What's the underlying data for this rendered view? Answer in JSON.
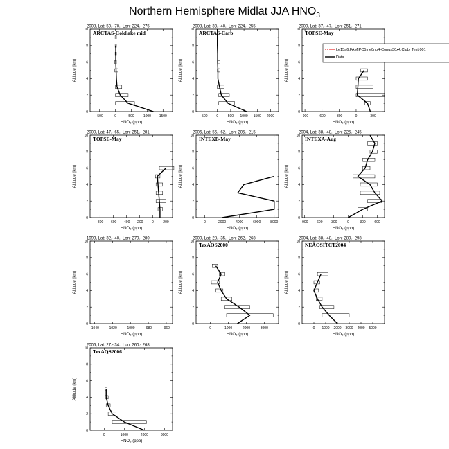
{
  "figure": {
    "title_main": "Northern Hemisphere Midlat JJA HNO",
    "title_sub": "3",
    "xlabel": "HNO₃ (ppb)",
    "ylabel": "Altitude (km)"
  },
  "chart_data": [
    {
      "type": "line",
      "name": "ARCTAS-Coldlake mid",
      "info": "2008, Lat: 50.- 70., Lon: 224.- 275.",
      "xlim": [
        -800,
        1800
      ],
      "xticks": [
        -500,
        0,
        500,
        1000,
        1500
      ],
      "ylim": [
        0,
        10
      ],
      "yticks": [
        0,
        2,
        4,
        6,
        8,
        10
      ],
      "model": [],
      "data": {
        "x": [
          1200,
          400,
          150,
          50,
          30,
          20,
          10,
          10,
          10
        ],
        "y": [
          0,
          1,
          2,
          3,
          4,
          5,
          6,
          7,
          8
        ]
      },
      "bars": [
        {
          "y": 1,
          "x0": 0,
          "x1": 600
        },
        {
          "y": 2,
          "x0": 0,
          "x1": 400
        },
        {
          "y": 3,
          "x0": 0,
          "x1": 200
        },
        {
          "y": 5,
          "x0": -20,
          "x1": 80
        },
        {
          "y": 6,
          "x0": -20,
          "x1": 30
        },
        {
          "y": 7,
          "x0": -10,
          "x1": 30
        },
        {
          "y": 8,
          "x0": -10,
          "x1": 30
        },
        {
          "y": 9,
          "x0": -10,
          "x1": 30
        }
      ]
    },
    {
      "type": "line",
      "name": "ARCTAS-Carb",
      "info": "2008, Lat: 33.- 40., Lon: 224.- 255.",
      "xlim": [
        -800,
        2300
      ],
      "xticks": [
        -500,
        0,
        500,
        1000,
        1500,
        2000
      ],
      "ylim": [
        0,
        10
      ],
      "yticks": [
        0,
        2,
        4,
        6,
        8,
        10
      ],
      "model": [],
      "data": {
        "x": [
          1100,
          400,
          150,
          80,
          20,
          20,
          10,
          10,
          0,
          0,
          0
        ],
        "y": [
          0,
          1,
          2,
          3,
          4,
          5,
          6,
          7,
          8,
          9,
          10
        ]
      },
      "bars": [
        {
          "y": 1,
          "x0": 50,
          "x1": 650
        },
        {
          "y": 2,
          "x0": 50,
          "x1": 450
        },
        {
          "y": 3,
          "x0": 0,
          "x1": 250
        },
        {
          "y": 5,
          "x0": 0,
          "x1": 100
        },
        {
          "y": 6,
          "x0": 0,
          "x1": 100
        }
      ]
    },
    {
      "type": "line",
      "name": "TOPSE-May",
      "info": "2000, Lat: 37.- 47., Lon: 251.- 271.",
      "xlim": [
        -950,
        500
      ],
      "xticks": [
        -900,
        -600,
        -300,
        0,
        300
      ],
      "ylim": [
        0,
        10
      ],
      "yticks": [
        0,
        2,
        4,
        6,
        8,
        10
      ],
      "legend": {
        "model_label": "f.e15a6.FAMIPC5.ne0np4-Conus30x4.Club_Test.001",
        "data_label": "Data"
      },
      "model": [],
      "data": {
        "x": [
          250,
          200,
          20,
          30,
          40,
          140
        ],
        "y": [
          0,
          1,
          2,
          3,
          4,
          5
        ]
      },
      "bars": [
        {
          "y": 1,
          "x0": 150,
          "x1": 250
        },
        {
          "y": 2,
          "x0": 0,
          "x1": 500
        },
        {
          "y": 3,
          "x0": 0,
          "x1": 300
        },
        {
          "y": 4,
          "x0": 0,
          "x1": 200
        },
        {
          "y": 5,
          "x0": 80,
          "x1": 200
        }
      ]
    },
    {
      "type": "line",
      "name": "TOPSE-May",
      "info": "2000, Lat: 47.- 65., Lon: 251.- 281.",
      "xlim": [
        -950,
        300
      ],
      "xticks": [
        -800,
        -600,
        -400,
        -200,
        0,
        200
      ],
      "ylim": [
        0,
        10
      ],
      "yticks": [
        0,
        2,
        4,
        6,
        8,
        10
      ],
      "model": [],
      "data": {
        "x": [
          110,
          110,
          100,
          90,
          80,
          70,
          200
        ],
        "y": [
          0,
          1,
          2,
          3,
          4,
          5,
          6
        ]
      },
      "bars": [
        {
          "y": 1,
          "x0": 80,
          "x1": 150
        },
        {
          "y": 2,
          "x0": 50,
          "x1": 200
        },
        {
          "y": 3,
          "x0": 50,
          "x1": 150
        },
        {
          "y": 4,
          "x0": 50,
          "x1": 150
        },
        {
          "y": 5,
          "x0": 40,
          "x1": 110
        },
        {
          "y": 6,
          "x0": 100,
          "x1": 320
        }
      ]
    },
    {
      "type": "line",
      "name": "INTEXB-May",
      "info": "2006, Lat: 56.- 62., Lon: 205.- 215.",
      "xlim": [
        -1000,
        8500
      ],
      "xticks": [
        0,
        2000,
        4000,
        6000,
        8000
      ],
      "ylim": [
        0,
        10
      ],
      "yticks": [
        0,
        2,
        4,
        6,
        8,
        10
      ],
      "model": [],
      "data": {
        "x": [
          2000,
          8000,
          8000,
          3800,
          4500,
          8000
        ],
        "y": [
          0,
          1,
          2,
          3,
          4,
          5
        ]
      },
      "bars": []
    },
    {
      "type": "line",
      "name": "INTEXA-Aug",
      "info": "2004, Lat: 38.- 48., Lon: 225.- 245.",
      "xlim": [
        -950,
        750
      ],
      "xticks": [
        -900,
        -600,
        -300,
        0,
        300,
        600
      ],
      "ylim": [
        0,
        10
      ],
      "yticks": [
        0,
        2,
        4,
        6,
        8,
        10
      ],
      "model": [],
      "data": {
        "x": [
          0,
          300,
          700,
          550,
          450,
          200,
          350,
          400,
          500,
          550,
          450
        ],
        "y": [
          0,
          1,
          2,
          3,
          4,
          5,
          6,
          7,
          8,
          9,
          10
        ]
      },
      "bars": [
        {
          "y": 1,
          "x0": 200,
          "x1": 400
        },
        {
          "y": 2,
          "x0": 400,
          "x1": 700
        },
        {
          "y": 3,
          "x0": 250,
          "x1": 650
        },
        {
          "y": 4,
          "x0": 250,
          "x1": 600
        },
        {
          "y": 5,
          "x0": 100,
          "x1": 550
        },
        {
          "y": 6,
          "x0": 300,
          "x1": 450
        },
        {
          "y": 7,
          "x0": 300,
          "x1": 550
        },
        {
          "y": 8,
          "x0": 450,
          "x1": 600
        },
        {
          "y": 9,
          "x0": 400,
          "x1": 600
        }
      ]
    },
    {
      "type": "line",
      "name": "",
      "info": "1999, Lat: 32.- 40., Lon: 270.- 280.",
      "xlim": [
        -1045,
        -953
      ],
      "xticks": [
        -1040,
        -1020,
        -1000,
        -980,
        -960
      ],
      "ylim": [
        0,
        10
      ],
      "yticks": [
        0,
        2,
        4,
        6,
        8,
        10
      ],
      "model": [],
      "data": {
        "x": [],
        "y": []
      },
      "bars": []
    },
    {
      "type": "line",
      "name": "TexAQS2000",
      "info": "2000, Lat: 28.- 35., Lon: 262.- 268.",
      "xlim": [
        -800,
        3800
      ],
      "xticks": [
        0,
        1000,
        2000,
        3000
      ],
      "ylim": [
        0,
        10
      ],
      "yticks": [
        0,
        2,
        4,
        6,
        8,
        10
      ],
      "model": [],
      "data": {
        "x": [
          1500,
          2200,
          1600,
          900,
          600,
          400,
          600,
          300
        ],
        "y": [
          0,
          1,
          2,
          3,
          4,
          5,
          6,
          7
        ]
      },
      "bars": [
        {
          "y": 1,
          "x0": 900,
          "x1": 3500
        },
        {
          "y": 2,
          "x0": 800,
          "x1": 2200
        },
        {
          "y": 3,
          "x0": 600,
          "x1": 1200
        },
        {
          "y": 4,
          "x0": 300,
          "x1": 700
        },
        {
          "y": 5,
          "x0": 50,
          "x1": 500
        },
        {
          "y": 6,
          "x0": 500,
          "x1": 800
        },
        {
          "y": 7,
          "x0": 100,
          "x1": 400
        }
      ]
    },
    {
      "type": "line",
      "name": "NEAQSITCT2004",
      "info": "2004, Lat: 38.- 48., Lon: 280.- 298.",
      "xlim": [
        -1000,
        6000
      ],
      "xticks": [
        0,
        1000,
        2000,
        3000,
        4000,
        5000
      ],
      "ylim": [
        0,
        10
      ],
      "yticks": [
        0,
        2,
        4,
        6,
        8,
        10
      ],
      "model": [],
      "data": {
        "x": [
          2000,
          1300,
          700,
          300,
          0,
          300,
          600
        ],
        "y": [
          0,
          1,
          2,
          3,
          4,
          5,
          6
        ]
      },
      "bars": [
        {
          "y": 1,
          "x0": 700,
          "x1": 3000
        },
        {
          "y": 2,
          "x0": 500,
          "x1": 1700
        },
        {
          "y": 3,
          "x0": 200,
          "x1": 700
        },
        {
          "y": 4,
          "x0": 0,
          "x1": 400
        },
        {
          "y": 5,
          "x0": 0,
          "x1": 500
        },
        {
          "y": 6,
          "x0": 300,
          "x1": 1200
        }
      ]
    },
    {
      "type": "line",
      "name": "TexAQS2006",
      "info": "2006, Lat: 27.- 34., Lon: 260.- 268.",
      "xlim": [
        -700,
        3400
      ],
      "xticks": [
        0,
        1000,
        2000,
        3000
      ],
      "ylim": [
        0,
        10
      ],
      "yticks": [
        0,
        2,
        4,
        6,
        8,
        10
      ],
      "model": [],
      "data": {
        "x": [
          2000,
          1000,
          400,
          200,
          100,
          100
        ],
        "y": [
          0,
          1,
          2,
          3,
          4,
          5
        ]
      },
      "bars": [
        {
          "y": 1,
          "x0": 400,
          "x1": 2100
        },
        {
          "y": 2,
          "x0": 200,
          "x1": 600
        },
        {
          "y": 3,
          "x0": 100,
          "x1": 300
        },
        {
          "y": 4,
          "x0": 50,
          "x1": 200
        },
        {
          "y": 5,
          "x0": 50,
          "x1": 150
        }
      ]
    }
  ]
}
